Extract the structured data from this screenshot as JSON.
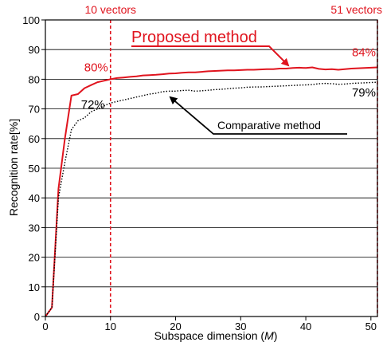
{
  "chart_data": {
    "type": "line",
    "xlabel_prefix": "Subspace dimension (",
    "xlabel_var": "M",
    "xlabel_suffix": ")",
    "ylabel": "Recognition rate[%]",
    "xlim": [
      0,
      51
    ],
    "ylim": [
      0,
      100
    ],
    "x_ticks": [
      0,
      10,
      20,
      30,
      40,
      50
    ],
    "y_ticks": [
      0,
      10,
      20,
      30,
      40,
      50,
      60,
      70,
      80,
      90,
      100
    ],
    "grid": "horizontal",
    "vertical_markers": [
      {
        "x": 10,
        "label": "10 vectors",
        "color": "#e0141e"
      },
      {
        "x": 51,
        "label": "51 vectors",
        "color": "#e0141e"
      }
    ],
    "series": [
      {
        "name": "Proposed method",
        "color": "#e0141e",
        "style": "solid",
        "x": [
          0,
          1,
          2,
          3,
          4,
          5,
          6,
          7,
          8,
          9,
          10,
          11,
          12,
          13,
          14,
          15,
          16,
          17,
          18,
          19,
          20,
          21,
          22,
          23,
          24,
          25,
          26,
          27,
          28,
          29,
          30,
          31,
          32,
          33,
          34,
          35,
          36,
          37,
          38,
          39,
          40,
          41,
          42,
          43,
          44,
          45,
          46,
          47,
          48,
          49,
          50,
          51
        ],
        "values": [
          0,
          3,
          43,
          60,
          74.5,
          75,
          77,
          78,
          79,
          79.5,
          80,
          80.4,
          80.6,
          80.8,
          81,
          81.3,
          81.4,
          81.5,
          81.7,
          81.9,
          82,
          82.2,
          82.3,
          82.3,
          82.5,
          82.7,
          82.8,
          82.9,
          83,
          83,
          83.1,
          83.2,
          83.2,
          83.3,
          83.4,
          83.4,
          83.6,
          83.6,
          83.8,
          83.9,
          83.8,
          84,
          83.5,
          83.3,
          83.4,
          83.2,
          83.4,
          83.6,
          83.7,
          83.8,
          83.9,
          84
        ]
      },
      {
        "name": "Comparative method",
        "color": "#000000",
        "style": "dotted",
        "x": [
          0,
          1,
          2,
          3,
          4,
          5,
          6,
          7,
          8,
          9,
          10,
          11,
          12,
          13,
          14,
          15,
          16,
          17,
          18,
          19,
          20,
          21,
          22,
          23,
          24,
          25,
          26,
          27,
          28,
          29,
          30,
          31,
          32,
          33,
          34,
          35,
          36,
          37,
          38,
          39,
          40,
          41,
          42,
          43,
          44,
          45,
          46,
          47,
          48,
          49,
          50,
          51
        ],
        "values": [
          0,
          3,
          40,
          52,
          63,
          66,
          67,
          69,
          70,
          71,
          72,
          72.5,
          73,
          73.5,
          74,
          74.5,
          75,
          75.3,
          75.8,
          76,
          76,
          76.2,
          76.3,
          76,
          76.1,
          76.3,
          76.5,
          76.6,
          76.8,
          77,
          77.1,
          77.3,
          77.4,
          77.4,
          77.5,
          77.6,
          77.7,
          77.8,
          77.9,
          78,
          78.1,
          78.2,
          78.5,
          78.6,
          78.5,
          78.3,
          78.4,
          78.6,
          78.7,
          78.8,
          78.9,
          79
        ]
      }
    ],
    "annotations": [
      {
        "text": "80%",
        "x": 10,
        "y": 80,
        "color": "#e0141e"
      },
      {
        "text": "84%",
        "x": 51,
        "y": 84,
        "color": "#e0141e"
      },
      {
        "text": "72%",
        "x": 10,
        "y": 72,
        "color": "#000000"
      },
      {
        "text": "79%",
        "x": 51,
        "y": 79,
        "color": "#000000"
      }
    ],
    "callouts": [
      {
        "text": "Proposed method",
        "color": "#e0141e",
        "target_x": 38,
        "target_y": 83.6
      },
      {
        "text": "Comparative method",
        "color": "#000000",
        "target_x": 18,
        "target_y": 75.8
      }
    ]
  }
}
